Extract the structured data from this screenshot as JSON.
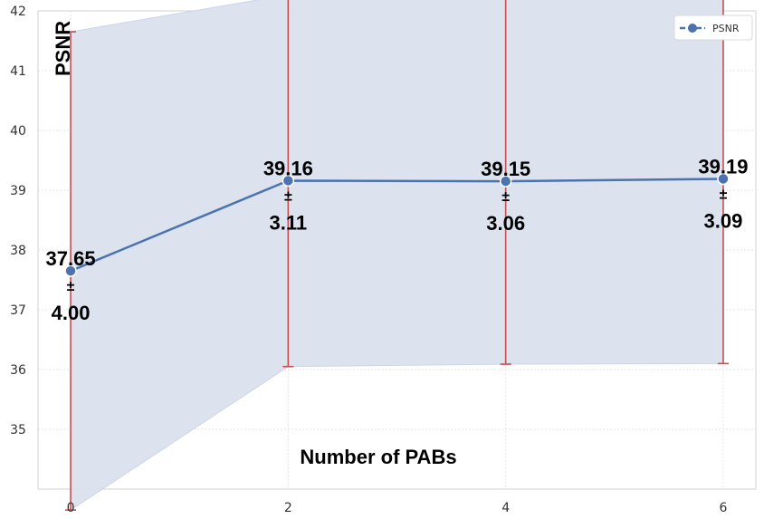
{
  "chart_data": {
    "type": "line",
    "title": "",
    "xlabel": "Number of PABs",
    "ylabel": "PSNR",
    "x": [
      0,
      2,
      4,
      6
    ],
    "x_ticks": [
      "0",
      "2",
      "4",
      "6"
    ],
    "y_ticks": [
      "35",
      "36",
      "37",
      "38",
      "39",
      "40",
      "41",
      "42"
    ],
    "xlim": [
      -0.3,
      6.3
    ],
    "ylim": [
      34.0,
      42.0
    ],
    "grid": true,
    "legend_position": "top-right",
    "series": [
      {
        "name": "PSNR",
        "values": [
          37.65,
          39.16,
          39.15,
          39.19
        ],
        "std": [
          4.0,
          3.11,
          3.06,
          3.09
        ],
        "line_color": "#4c72b0",
        "band_color": "#dbe2ef",
        "errorbar_color": "#c44e52"
      }
    ],
    "annotations": [
      {
        "mean": "37.65",
        "pm": "±",
        "std": "4.00"
      },
      {
        "mean": "39.16",
        "pm": "±",
        "std": "3.11"
      },
      {
        "mean": "39.15",
        "pm": "±",
        "std": "3.06"
      },
      {
        "mean": "39.19",
        "pm": "±",
        "std": "3.09"
      }
    ]
  }
}
